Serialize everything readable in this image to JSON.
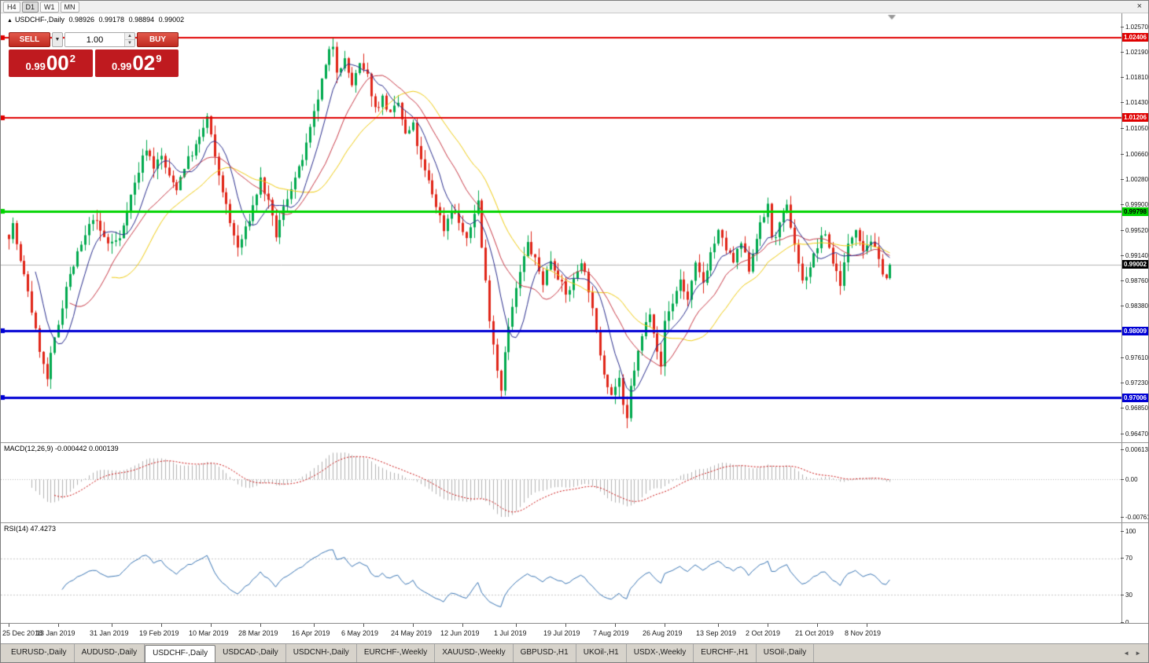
{
  "toolbar": {
    "timeframes": [
      "H4",
      "D1",
      "W1",
      "MN"
    ],
    "active_timeframe": "D1",
    "close_icon": "×"
  },
  "chart": {
    "title": {
      "marker": "▲",
      "name": "USDCHF-,Daily",
      "open": "0.98926",
      "high": "0.99178",
      "low": "0.98894",
      "close": "0.99002"
    },
    "trade_panel": {
      "sell_label": "SELL",
      "buy_label": "BUY",
      "volume": "1.00",
      "dropdown_icon": "▼",
      "spin_up_icon": "▲",
      "spin_down_icon": "▼",
      "sell_price": {
        "prefix": "0.99",
        "big": "00",
        "sup": "2"
      },
      "buy_price": {
        "prefix": "0.99",
        "big": "02",
        "sup": "9"
      }
    },
    "current_price_label": "0.99002",
    "price_ticks": [
      "1.02570",
      "1.02190",
      "1.01810",
      "1.01430",
      "1.01050",
      "1.00660",
      "1.00280",
      "0.99900",
      "0.99520",
      "0.99140",
      "0.98760",
      "0.98380",
      "0.97610",
      "0.97230",
      "0.96850",
      "0.96470"
    ],
    "levels": [
      {
        "label": "1.02406",
        "value": 1.02406,
        "color": "#e00000",
        "text": "#ffffff",
        "width": 2
      },
      {
        "label": "1.01206",
        "value": 1.01206,
        "color": "#e00000",
        "text": "#ffffff",
        "width": 2
      },
      {
        "label": "0.99798",
        "value": 0.99798,
        "color": "#00d400",
        "text": "#000000",
        "width": 3
      },
      {
        "label": "0.98009",
        "value": 0.98009,
        "color": "#0000d4",
        "text": "#ffffff",
        "width": 3
      },
      {
        "label": "0.97006",
        "value": 0.97006,
        "color": "#0000d4",
        "text": "#ffffff",
        "width": 3
      }
    ],
    "dates": [
      "25 Dec 2018",
      "13 Jan 2019",
      "31 Jan 2019",
      "19 Feb 2019",
      "10 Mar 2019",
      "28 Mar 2019",
      "16 Apr 2019",
      "6 May 2019",
      "24 May 2019",
      "12 Jun 2019",
      "1 Jul 2019",
      "19 Jul 2019",
      "7 Aug 2019",
      "26 Aug 2019",
      "13 Sep 2019",
      "2 Oct 2019",
      "21 Oct 2019",
      "8 Nov 2019"
    ]
  },
  "macd": {
    "label": "MACD(12,26,9) -0.000442 0.000139",
    "axis": [
      {
        "label": "0.00613",
        "value": 0.00613
      },
      {
        "label": "0.00",
        "value": 0
      },
      {
        "label": "-0.00761",
        "value": -0.00761
      }
    ]
  },
  "rsi": {
    "label": "RSI(14) 47.4273",
    "axis": [
      {
        "label": "100",
        "value": 100
      },
      {
        "label": "70",
        "value": 70
      },
      {
        "label": "30",
        "value": 30
      },
      {
        "label": "0",
        "value": 0
      }
    ],
    "levels": [
      70,
      30
    ]
  },
  "tabs": {
    "items": [
      {
        "label": "EURUSD-,Daily",
        "active": false
      },
      {
        "label": "AUDUSD-,Daily",
        "active": false
      },
      {
        "label": "USDCHF-,Daily",
        "active": true
      },
      {
        "label": "USDCAD-,Daily",
        "active": false
      },
      {
        "label": "USDCNH-,Daily",
        "active": false
      },
      {
        "label": "EURCHF-,Weekly",
        "active": false
      },
      {
        "label": "XAUUSD-,Weekly",
        "active": false
      },
      {
        "label": "GBPUSD-,H1",
        "active": false
      },
      {
        "label": "UKOil-,H1",
        "active": false
      },
      {
        "label": "USDX-,Weekly",
        "active": false
      },
      {
        "label": "EURCHF-,H1",
        "active": false
      },
      {
        "label": "USOil-,Daily",
        "active": false
      }
    ],
    "nav": [
      "◄",
      "►"
    ]
  },
  "chart_data": {
    "type": "candlestick",
    "symbol": "USDCHF",
    "timeframe": "Daily",
    "ohlc_current": {
      "open": 0.98926,
      "high": 0.99178,
      "low": 0.98894,
      "close": 0.99002
    },
    "ylim": [
      0.9647,
      1.0257
    ],
    "x_range": [
      "25 Dec 2018",
      "8 Nov 2019"
    ],
    "candle_count": 232,
    "close_anchors": [
      [
        0,
        0.9945
      ],
      [
        1,
        0.996
      ],
      [
        3,
        0.9903
      ],
      [
        5,
        0.9862
      ],
      [
        7,
        0.98
      ],
      [
        9,
        0.9748
      ],
      [
        10,
        0.9728
      ],
      [
        11,
        0.9762
      ],
      [
        13,
        0.9812
      ],
      [
        15,
        0.9868
      ],
      [
        18,
        0.9915
      ],
      [
        20,
        0.9942
      ],
      [
        22,
        0.9972
      ],
      [
        24,
        0.995
      ],
      [
        26,
        0.9932
      ],
      [
        29,
        0.9938
      ],
      [
        31,
        0.9985
      ],
      [
        33,
        1.0022
      ],
      [
        35,
        1.006
      ],
      [
        36,
        1.0076
      ],
      [
        38,
        1.0048
      ],
      [
        40,
        1.0062
      ],
      [
        42,
        1.003
      ],
      [
        44,
        1.0016
      ],
      [
        46,
        1.0048
      ],
      [
        48,
        1.0068
      ],
      [
        50,
        1.0088
      ],
      [
        52,
        1.0122
      ],
      [
        53,
        1.0092
      ],
      [
        54,
        1.0058
      ],
      [
        56,
        1.0012
      ],
      [
        58,
        0.9962
      ],
      [
        60,
        0.9925
      ],
      [
        62,
        0.9952
      ],
      [
        64,
        0.9988
      ],
      [
        66,
        1.0028
      ],
      [
        68,
        0.9992
      ],
      [
        70,
        0.9944
      ],
      [
        72,
        0.9985
      ],
      [
        74,
        1.0018
      ],
      [
        76,
        1.0042
      ],
      [
        78,
        1.0078
      ],
      [
        80,
        1.0125
      ],
      [
        82,
        1.0175
      ],
      [
        84,
        1.0218
      ],
      [
        85,
        1.023
      ],
      [
        86,
        1.0194
      ],
      [
        88,
        1.0206
      ],
      [
        90,
        1.017
      ],
      [
        92,
        1.0198
      ],
      [
        94,
        1.0182
      ],
      [
        96,
        1.0134
      ],
      [
        98,
        1.015
      ],
      [
        100,
        1.0124
      ],
      [
        102,
        1.0142
      ],
      [
        104,
        1.0094
      ],
      [
        106,
        1.0108
      ],
      [
        108,
        1.0054
      ],
      [
        110,
        1.0024
      ],
      [
        112,
        0.999
      ],
      [
        114,
        0.9954
      ],
      [
        116,
        0.9986
      ],
      [
        118,
        0.9964
      ],
      [
        120,
        0.9934
      ],
      [
        122,
        0.998
      ],
      [
        123,
        0.9996
      ],
      [
        124,
        0.9926
      ],
      [
        126,
        0.9822
      ],
      [
        128,
        0.9744
      ],
      [
        129,
        0.9714
      ],
      [
        130,
        0.9774
      ],
      [
        132,
        0.9836
      ],
      [
        134,
        0.9888
      ],
      [
        136,
        0.9932
      ],
      [
        138,
        0.9906
      ],
      [
        140,
        0.9874
      ],
      [
        142,
        0.9908
      ],
      [
        144,
        0.9884
      ],
      [
        146,
        0.9854
      ],
      [
        148,
        0.9876
      ],
      [
        150,
        0.9908
      ],
      [
        152,
        0.9864
      ],
      [
        154,
        0.9796
      ],
      [
        156,
        0.974
      ],
      [
        158,
        0.9706
      ],
      [
        160,
        0.973
      ],
      [
        161,
        0.9684
      ],
      [
        162,
        0.9666
      ],
      [
        163,
        0.9716
      ],
      [
        164,
        0.9744
      ],
      [
        166,
        0.9792
      ],
      [
        168,
        0.9832
      ],
      [
        170,
        0.9774
      ],
      [
        171,
        0.9744
      ],
      [
        172,
        0.9816
      ],
      [
        174,
        0.9844
      ],
      [
        176,
        0.9878
      ],
      [
        178,
        0.9846
      ],
      [
        180,
        0.9898
      ],
      [
        182,
        0.9874
      ],
      [
        184,
        0.9918
      ],
      [
        186,
        0.9948
      ],
      [
        188,
        0.9924
      ],
      [
        190,
        0.9904
      ],
      [
        192,
        0.9932
      ],
      [
        194,
        0.9894
      ],
      [
        196,
        0.9944
      ],
      [
        198,
        0.9972
      ],
      [
        199,
        0.9994
      ],
      [
        200,
        0.9936
      ],
      [
        202,
        0.9958
      ],
      [
        204,
        0.9986
      ],
      [
        206,
        0.9932
      ],
      [
        208,
        0.9874
      ],
      [
        210,
        0.9898
      ],
      [
        212,
        0.9928
      ],
      [
        214,
        0.9948
      ],
      [
        216,
        0.9904
      ],
      [
        218,
        0.9874
      ],
      [
        220,
        0.9928
      ],
      [
        222,
        0.9958
      ],
      [
        224,
        0.9924
      ],
      [
        226,
        0.9938
      ],
      [
        228,
        0.9904
      ],
      [
        230,
        0.988
      ],
      [
        231,
        0.99002
      ]
    ],
    "moving_averages": [
      {
        "period": 28,
        "color": "#f0cc12"
      },
      {
        "period": 17,
        "color": "#c93a47"
      },
      {
        "period": 8,
        "color": "#2a2e8e"
      }
    ],
    "indicators": {
      "macd": {
        "fast": 12,
        "slow": 26,
        "signal": 9,
        "value": -0.000442,
        "signal_value": 0.000139
      },
      "rsi": {
        "period": 14,
        "value": 47.4273
      }
    },
    "colors": {
      "up": "#00a94e",
      "down": "#e02518",
      "current_line": "#b5b5b5",
      "macd_hist": "#b2b2b2",
      "macd_signal": "#cc1111",
      "rsi_line": "#3a76b5",
      "ind_level": "#c9c9c9",
      "background": "#ffffff"
    }
  }
}
